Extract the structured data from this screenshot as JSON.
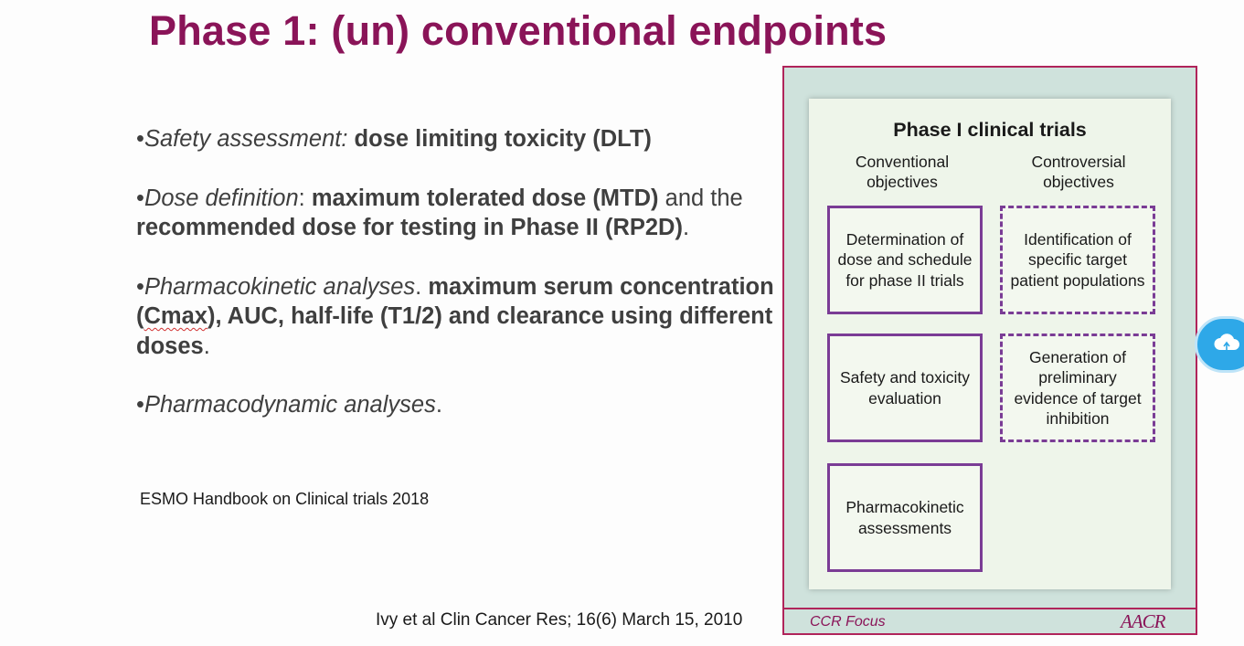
{
  "slide": {
    "title": "Phase 1: (un) conventional endpoints",
    "bullets": {
      "b1": {
        "prefix": "•",
        "italic": "Safety assessment:",
        "bold": "dose limiting toxicity (DLT)"
      },
      "b2": {
        "prefix": "•",
        "italic": "Dose definition",
        "after_italic": ":  ",
        "bold1": "maximum tolerated dose (MTD)",
        "mid": " and the ",
        "bold2": "recommended dose for testing in Phase II (RP2D)",
        "end": "."
      },
      "b3": {
        "prefix": "•",
        "italic": "Pharmacokinetic analyses",
        "after_italic": ". ",
        "bold1": "maximum serum concentration (",
        "squiggle": "Cmax",
        "bold2": "), AUC, half-life (T1/2) and clearance using different doses",
        "end": "."
      },
      "b4": {
        "prefix": "•",
        "italic": "Pharmacodynamic analyses",
        "end": "."
      }
    },
    "reference_1": "ESMO Handbook on Clinical trials 2018",
    "reference_2": "Ivy et al Clin Cancer Res; 16(6) March 15, 2010"
  },
  "figure": {
    "title": "Phase I clinical trials",
    "col_left_header": "Conventional objectives",
    "col_right_header": "Controversial objectives",
    "conventional": [
      "Determination of dose and schedule for phase II trials",
      "Safety and toxicity evaluation",
      "Pharmacokinetic assessments"
    ],
    "controversial": [
      "Identification of specific target patient populations",
      "Generation of preliminary evidence of target inhibition"
    ],
    "footer_left": "CCR Focus",
    "footer_logo": "AACR"
  },
  "floating_button": {
    "icon": "cloud-icon"
  },
  "colors": {
    "title": "#8a1458",
    "box_border": "#7a3c95",
    "frame": "#b0245a",
    "frame_bg": "#cfe2dc",
    "button": "#2ea8e8"
  }
}
